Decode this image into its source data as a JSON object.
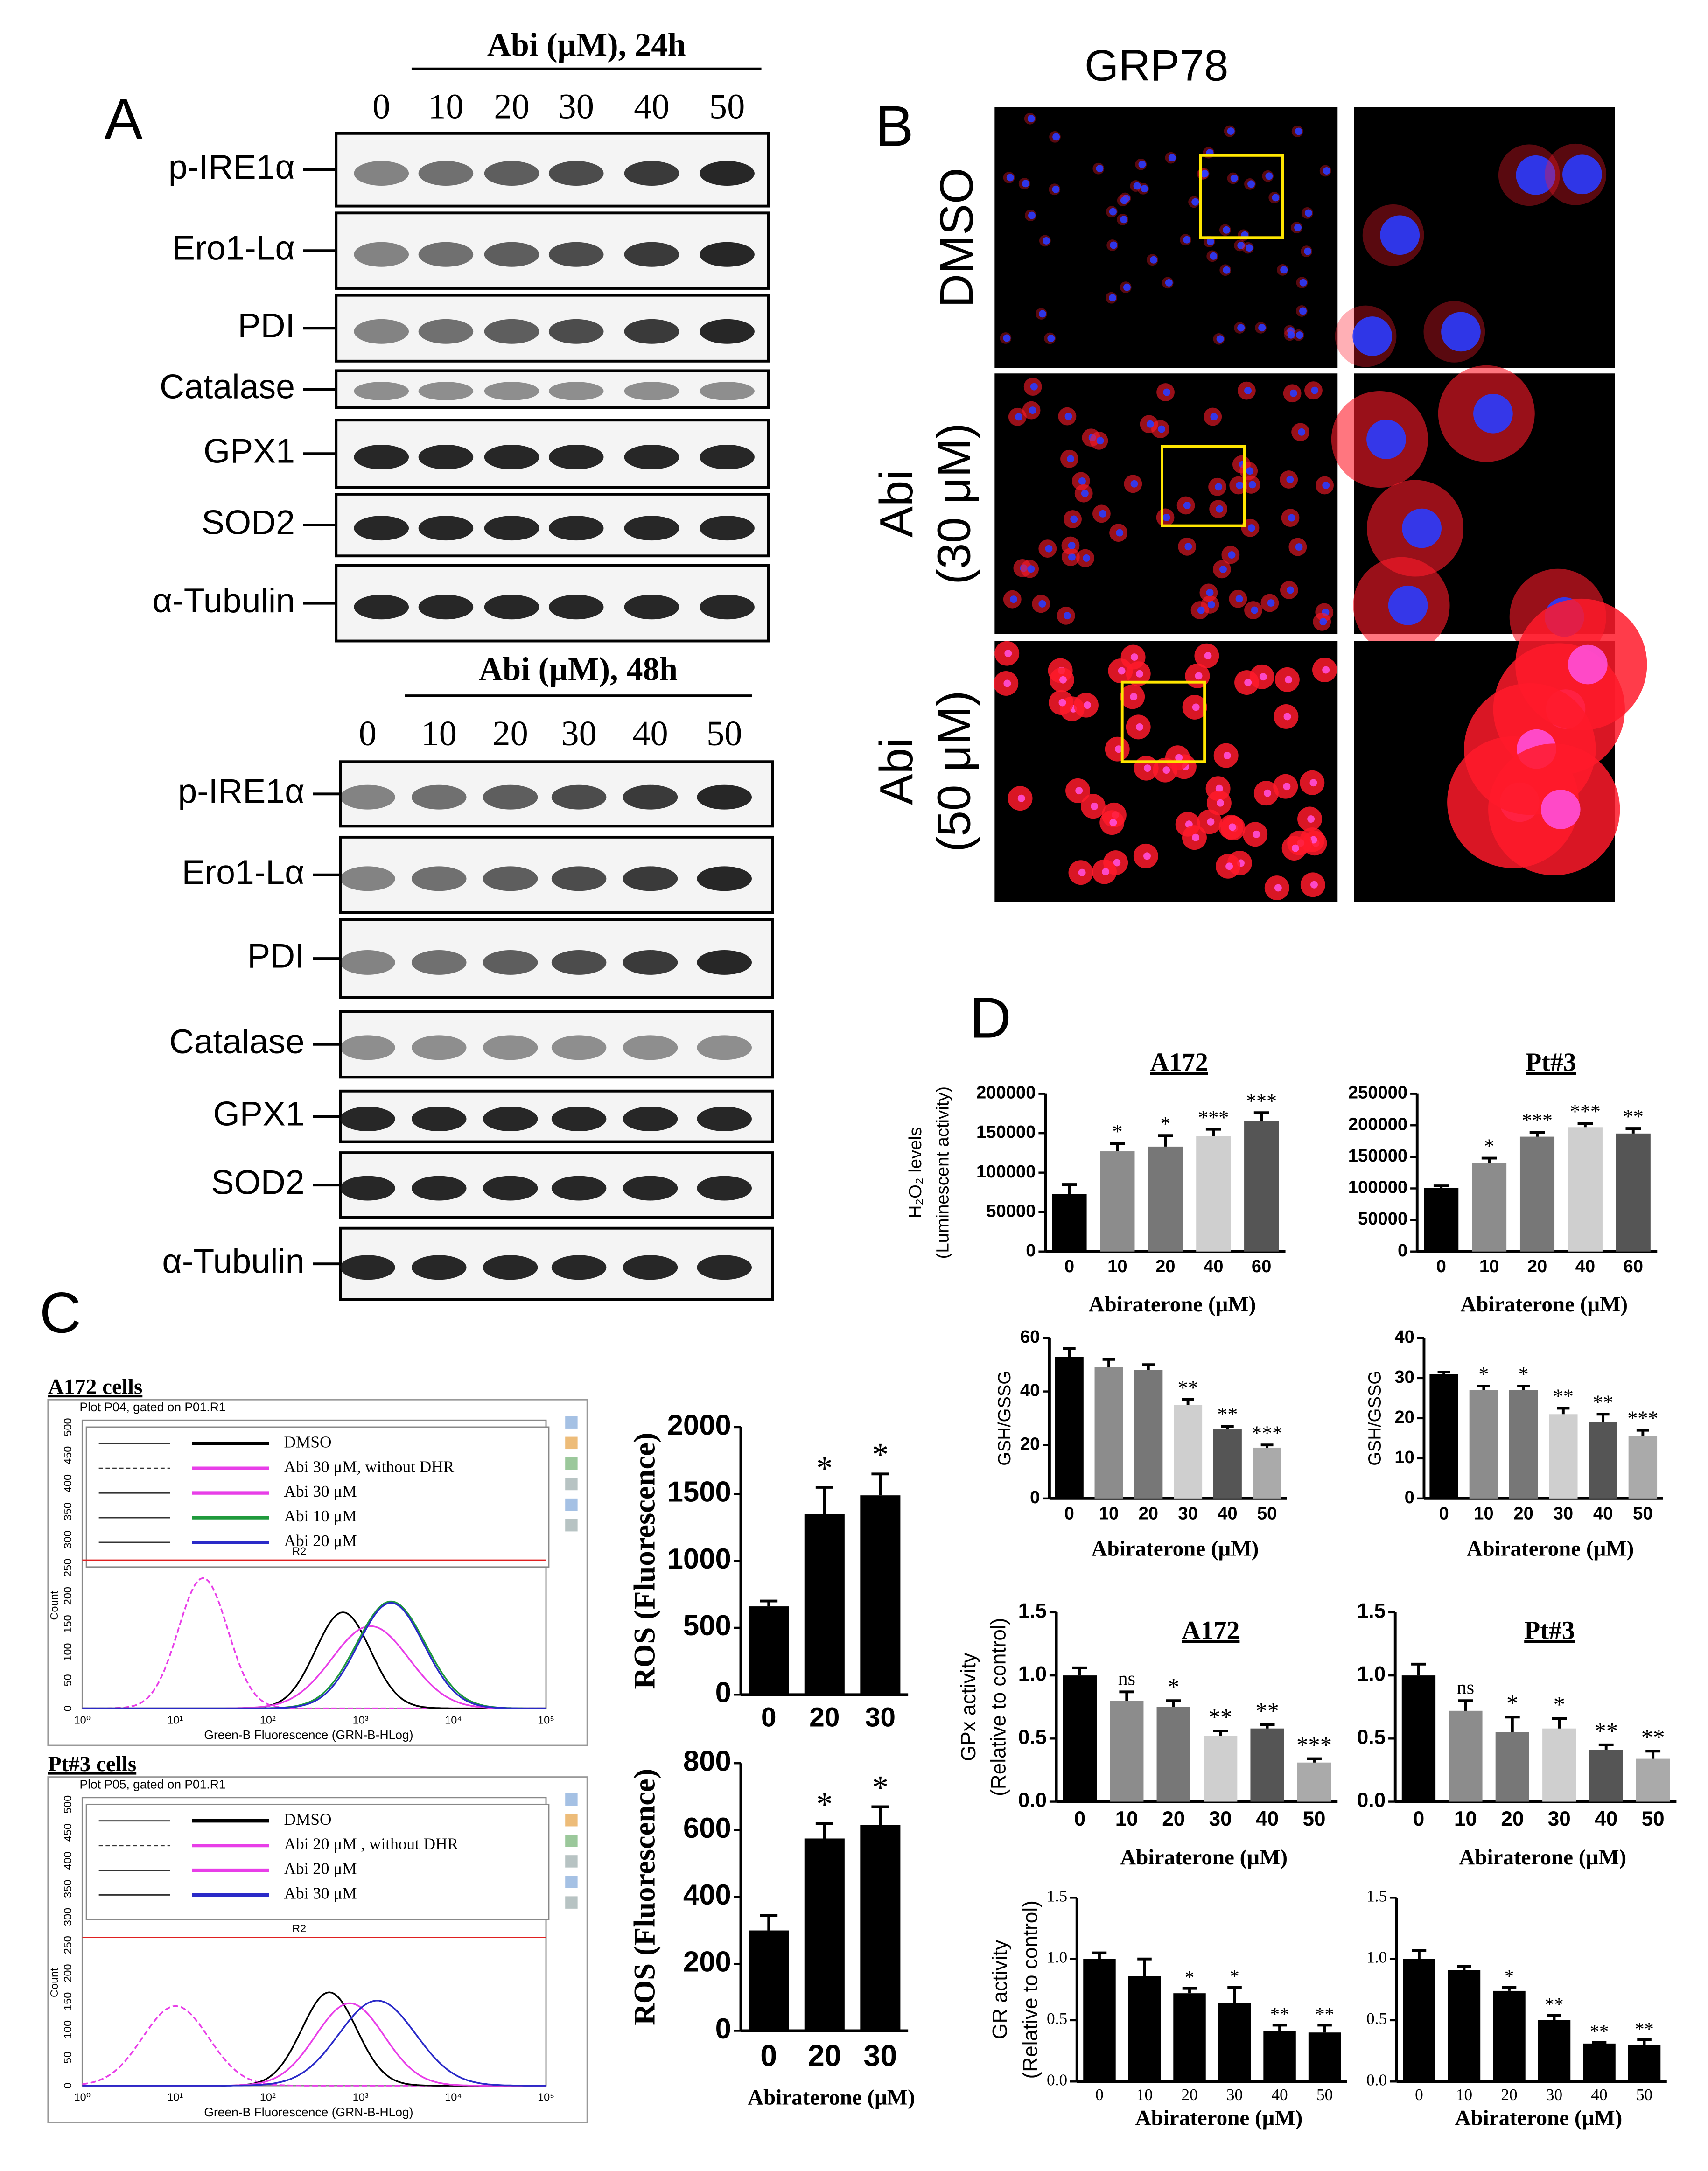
{
  "panel_a": {
    "label": "A",
    "blots": [
      {
        "header": "Abi (μM), 24h",
        "lanes": [
          "0",
          "10",
          "20",
          "30",
          "40",
          "50"
        ],
        "rows": [
          "p-IRE1α",
          "Ero1-Lα",
          "PDI",
          "Catalase",
          "GPX1",
          "SOD2",
          "α-Tubulin"
        ]
      },
      {
        "header": "Abi (μM), 48h",
        "lanes": [
          "0",
          "10",
          "20",
          "30",
          "40",
          "50"
        ],
        "rows": [
          "p-IRE1α",
          "Ero1-Lα",
          "PDI",
          "Catalase",
          "GPX1",
          "SOD2",
          "α-Tubulin"
        ]
      }
    ]
  },
  "panel_b": {
    "label": "B",
    "title": "GRP78",
    "rows": [
      [
        "DMSO"
      ],
      [
        "Abi",
        "(30 μM)"
      ],
      [
        "Abi",
        "(50 μM)"
      ]
    ]
  },
  "panel_c": {
    "label": "C",
    "flow": [
      {
        "title": "A172 cells",
        "plot_header": "Plot P04, gated on P01.R1",
        "gate": "R2",
        "xlabel": "Green-B Fluorescence (GRN-B-HLog)",
        "ylabel": "Count",
        "yticks": [
          "0",
          "50",
          "100",
          "150",
          "200",
          "250",
          "300",
          "350",
          "400",
          "450",
          "500"
        ],
        "xticks": [
          "10⁰",
          "10¹",
          "10²",
          "10³",
          "10⁴",
          "10⁵"
        ],
        "legend": [
          {
            "text": "DMSO",
            "color": "#000000",
            "dashed": false
          },
          {
            "text": "Abi 30 μM, without DHR",
            "color": "#e83ee8",
            "dashed": true
          },
          {
            "text": "Abi 30 μM",
            "color": "#e83ee8",
            "dashed": false
          },
          {
            "text": "Abi 10 μM",
            "color": "#1f9a3c",
            "dashed": false
          },
          {
            "text": "Abi 20 μM",
            "color": "#2a2ac8",
            "dashed": false
          }
        ]
      },
      {
        "title": "Pt#3 cells",
        "plot_header": "Plot P05, gated on P01.R1",
        "gate": "R2",
        "xlabel": "Green-B Fluorescence (GRN-B-HLog)",
        "ylabel": "Count",
        "yticks": [
          "0",
          "50",
          "100",
          "150",
          "200",
          "250",
          "300",
          "350",
          "400",
          "450",
          "500"
        ],
        "xticks": [
          "10⁰",
          "10¹",
          "10²",
          "10³",
          "10⁴",
          "10⁵"
        ],
        "legend": [
          {
            "text": "DMSO",
            "color": "#000000",
            "dashed": false
          },
          {
            "text": "Abi 20 μM , without DHR",
            "color": "#e83ee8",
            "dashed": true
          },
          {
            "text": "Abi 20 μM",
            "color": "#e83ee8",
            "dashed": false
          },
          {
            "text": "Abi 30 μM",
            "color": "#2a2ac8",
            "dashed": false
          }
        ]
      }
    ]
  },
  "panel_d": {
    "label": "D"
  },
  "chart_data": [
    {
      "type": "bar",
      "categories": [
        "0",
        "20",
        "30"
      ],
      "values": [
        660,
        1350,
        1490
      ],
      "errors": [
        40,
        200,
        160
      ],
      "colors": [
        "#000000",
        "#000000",
        "#000000"
      ],
      "ylim": [
        0,
        2000
      ],
      "yticks": [
        0,
        500,
        1000,
        1500,
        2000
      ],
      "ylabel": [
        "ROS (Fluorescence)"
      ],
      "annotations": [
        null,
        "*",
        "*"
      ]
    },
    {
      "type": "bar",
      "categories": [
        "0",
        "20",
        "30"
      ],
      "values": [
        300,
        575,
        615
      ],
      "errors": [
        45,
        45,
        55
      ],
      "colors": [
        "#000000",
        "#000000",
        "#000000"
      ],
      "ylim": [
        0,
        800
      ],
      "yticks": [
        0,
        200,
        400,
        600,
        800
      ],
      "ylabel": [
        "ROS (Fluorescence)"
      ],
      "xlabel": "Abiraterone (μM)",
      "annotations": [
        null,
        "*",
        "*"
      ]
    },
    {
      "type": "bar",
      "title": "A172",
      "categories": [
        "0",
        "10",
        "20",
        "40",
        "60"
      ],
      "values": [
        73000,
        127000,
        133000,
        146000,
        166000
      ],
      "errors": [
        12000,
        10000,
        14000,
        9000,
        10000
      ],
      "colors": [
        "#000000",
        "#8c8c8c",
        "#777777",
        "#cfcfcf",
        "#555555"
      ],
      "ylim": [
        0,
        200000
      ],
      "yticks": [
        0,
        50000,
        100000,
        150000,
        200000
      ],
      "ylabel": [
        "H₂O₂ levels",
        "(Luminescent activity)"
      ],
      "xlabel": "Abiraterone (μM)",
      "annotations": [
        null,
        "*",
        "*",
        "***",
        "***"
      ]
    },
    {
      "type": "bar",
      "title": "Pt#3",
      "categories": [
        "0",
        "10",
        "20",
        "40",
        "60"
      ],
      "values": [
        101000,
        140000,
        182000,
        197000,
        187000
      ],
      "errors": [
        3000,
        8000,
        7000,
        6000,
        8000
      ],
      "colors": [
        "#000000",
        "#8c8c8c",
        "#777777",
        "#cfcfcf",
        "#555555"
      ],
      "ylim": [
        0,
        250000
      ],
      "yticks": [
        0,
        50000,
        100000,
        150000,
        200000,
        250000
      ],
      "xlabel": "Abiraterone (μM)",
      "annotations": [
        null,
        "*",
        "***",
        "***",
        "**"
      ]
    },
    {
      "type": "bar",
      "categories": [
        "0",
        "10",
        "20",
        "30",
        "40",
        "50"
      ],
      "values": [
        53,
        49,
        48,
        35,
        26,
        19
      ],
      "errors": [
        3,
        3,
        2,
        2,
        1,
        1
      ],
      "colors": [
        "#000000",
        "#8c8c8c",
        "#777777",
        "#cfcfcf",
        "#555555",
        "#aaaaaa"
      ],
      "ylim": [
        0,
        60
      ],
      "yticks": [
        0,
        20,
        40,
        60
      ],
      "ylabel": [
        "GSH/GSSG"
      ],
      "xlabel": "Abiraterone (μM)",
      "annotations": [
        null,
        null,
        null,
        "**",
        "**",
        "***"
      ]
    },
    {
      "type": "bar",
      "categories": [
        "0",
        "10",
        "20",
        "30",
        "40",
        "50"
      ],
      "values": [
        31,
        27,
        27,
        21,
        19,
        15.5
      ],
      "errors": [
        0.5,
        1,
        1,
        1.5,
        2,
        1.5
      ],
      "colors": [
        "#000000",
        "#8c8c8c",
        "#777777",
        "#cfcfcf",
        "#555555",
        "#aaaaaa"
      ],
      "ylim": [
        0,
        40
      ],
      "yticks": [
        0,
        10,
        20,
        30,
        40
      ],
      "ylabel": [
        "GSH/GSSG"
      ],
      "xlabel": "Abiraterone (μM)",
      "annotations": [
        null,
        "*",
        "*",
        "**",
        "**",
        "***"
      ]
    },
    {
      "type": "bar",
      "title": "A172",
      "categories": [
        "0",
        "10",
        "20",
        "30",
        "40",
        "50"
      ],
      "values": [
        1.0,
        0.8,
        0.75,
        0.52,
        0.58,
        0.31
      ],
      "errors": [
        0.06,
        0.07,
        0.05,
        0.04,
        0.03,
        0.03
      ],
      "colors": [
        "#000000",
        "#8c8c8c",
        "#777777",
        "#cfcfcf",
        "#555555",
        "#aaaaaa"
      ],
      "ylim": [
        0,
        1.5
      ],
      "yticks": [
        {
          "value": 0,
          "label": "0.0"
        },
        0.5,
        {
          "value": 1,
          "label": "1.0"
        },
        1.5
      ],
      "ylabel": [
        "GPx activity",
        "(Relative to control)"
      ],
      "xlabel": "Abiraterone (μM)",
      "annotations": [
        null,
        "ns",
        "*",
        "**",
        "**",
        "***"
      ]
    },
    {
      "type": "bar",
      "title": "Pt#3",
      "categories": [
        "0",
        "10",
        "20",
        "30",
        "40",
        "50"
      ],
      "values": [
        1.0,
        0.72,
        0.55,
        0.58,
        0.41,
        0.34
      ],
      "errors": [
        0.09,
        0.08,
        0.12,
        0.08,
        0.04,
        0.06
      ],
      "colors": [
        "#000000",
        "#8c8c8c",
        "#777777",
        "#cfcfcf",
        "#555555",
        "#aaaaaa"
      ],
      "ylim": [
        0,
        1.5
      ],
      "yticks": [
        {
          "value": 0,
          "label": "0.0"
        },
        0.5,
        {
          "value": 1,
          "label": "1.0"
        },
        1.5
      ],
      "xlabel": "Abiraterone (μM)",
      "annotations": [
        null,
        "ns",
        "*",
        "*",
        "**",
        "**"
      ]
    },
    {
      "type": "bar",
      "categories": [
        "0",
        "10",
        "20",
        "30",
        "40",
        "50"
      ],
      "values": [
        1.0,
        0.86,
        0.72,
        0.64,
        0.41,
        0.4
      ],
      "errors": [
        0.05,
        0.14,
        0.04,
        0.13,
        0.05,
        0.06
      ],
      "colors": [
        "#000000",
        "#000000",
        "#000000",
        "#000000",
        "#000000",
        "#000000"
      ],
      "ylim": [
        0,
        1.5
      ],
      "yticks": [
        {
          "value": 0,
          "label": "0.0"
        },
        0.5,
        {
          "value": 1,
          "label": "1.0"
        },
        1.5
      ],
      "ylabel": [
        "GR activity",
        "(Relative to control)"
      ],
      "xlabel": "Abiraterone (μM)",
      "annotations": [
        null,
        null,
        "*",
        "*",
        "**",
        "**"
      ]
    },
    {
      "type": "bar",
      "categories": [
        "0",
        "10",
        "20",
        "30",
        "40",
        "50"
      ],
      "values": [
        1.0,
        0.91,
        0.74,
        0.5,
        0.31,
        0.3
      ],
      "errors": [
        0.07,
        0.03,
        0.03,
        0.04,
        0.01,
        0.04
      ],
      "colors": [
        "#000000",
        "#000000",
        "#000000",
        "#000000",
        "#000000",
        "#000000"
      ],
      "ylim": [
        0,
        1.5
      ],
      "yticks": [
        {
          "value": 0,
          "label": "0.0"
        },
        0.5,
        {
          "value": 1,
          "label": "1.0"
        },
        1.5
      ],
      "xlabel": "Abiraterone (μM)",
      "annotations": [
        null,
        null,
        "*",
        "**",
        "**",
        "**"
      ]
    }
  ]
}
